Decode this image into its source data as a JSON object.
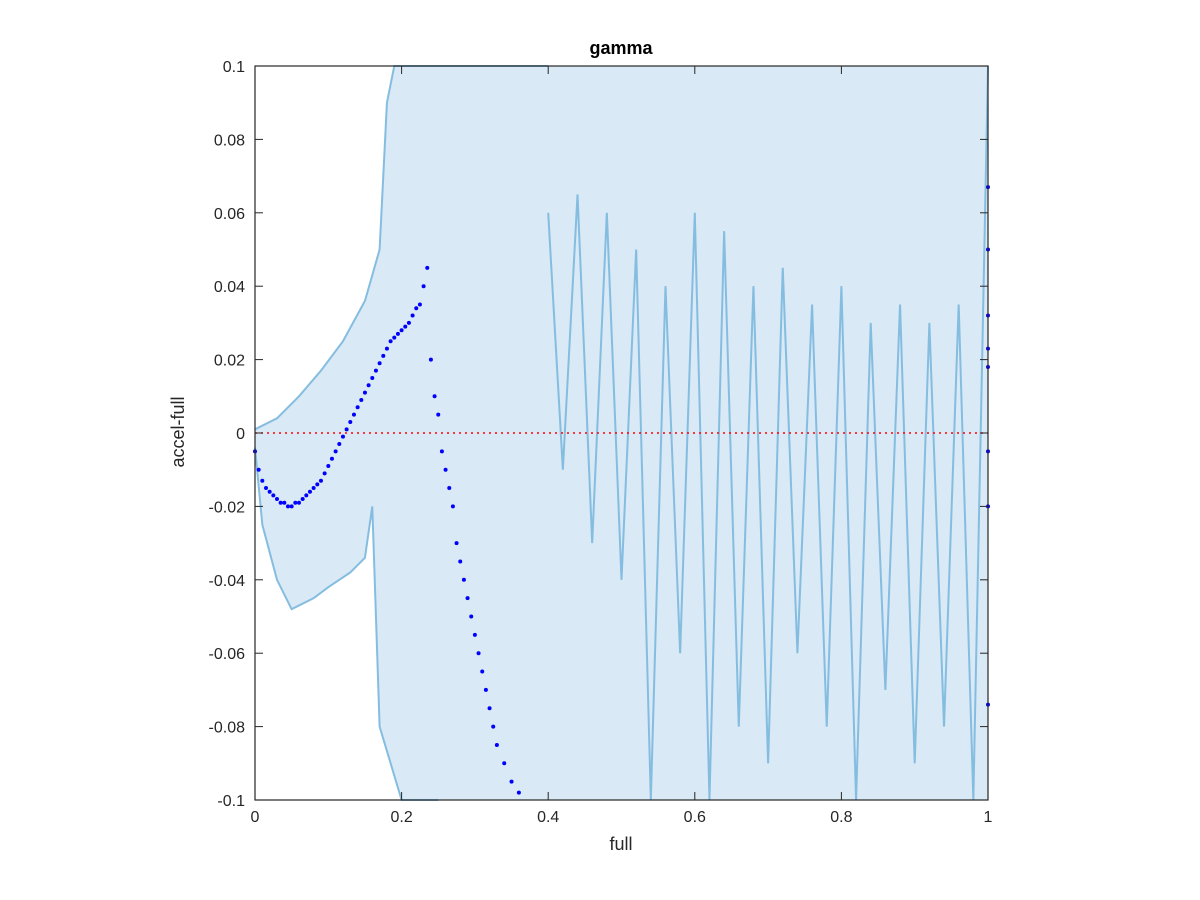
{
  "chart_data": {
    "type": "scatter",
    "title": "gamma",
    "xlabel": "full",
    "ylabel": "accel-full",
    "xlim": [
      0,
      1
    ],
    "ylim": [
      -0.1,
      0.1
    ],
    "xticks": [
      "0",
      "0.2",
      "0.4",
      "0.6",
      "0.8",
      "1"
    ],
    "yticks": [
      "-0.1",
      "-0.08",
      "-0.06",
      "-0.04",
      "-0.02",
      "0",
      "0.02",
      "0.04",
      "0.06",
      "0.08",
      "0.1"
    ],
    "reference_line_y": 0,
    "colors": {
      "band_fill": "#d9e9f5",
      "band_line": "#85bde0",
      "points": "#0000ff",
      "reference": "#ff0000",
      "axes": "#262626"
    },
    "band": {
      "upper": [
        [
          0,
          0.001
        ],
        [
          0.03,
          0.004
        ],
        [
          0.06,
          0.01
        ],
        [
          0.09,
          0.017
        ],
        [
          0.12,
          0.025
        ],
        [
          0.15,
          0.036
        ],
        [
          0.17,
          0.05
        ],
        [
          0.18,
          0.09
        ],
        [
          0.19,
          0.1
        ],
        [
          0.25,
          0.1
        ],
        [
          0.38,
          0.1
        ],
        [
          0.4,
          0.1
        ]
      ],
      "lower": [
        [
          0,
          -0.004
        ],
        [
          0.01,
          -0.025
        ],
        [
          0.03,
          -0.04
        ],
        [
          0.05,
          -0.048
        ],
        [
          0.08,
          -0.045
        ],
        [
          0.1,
          -0.042
        ],
        [
          0.13,
          -0.038
        ],
        [
          0.15,
          -0.034
        ],
        [
          0.16,
          -0.02
        ],
        [
          0.17,
          -0.08
        ],
        [
          0.2,
          -0.1
        ],
        [
          0.24,
          -0.1
        ],
        [
          0.25,
          -0.1
        ]
      ],
      "noise_lines": [
        {
          "x": [
            0.4,
            0.42,
            0.44,
            0.46,
            0.48,
            0.5,
            0.52,
            0.54,
            0.56,
            0.58,
            0.6,
            0.62,
            0.64,
            0.66,
            0.68,
            0.7,
            0.72,
            0.74,
            0.76,
            0.78,
            0.8,
            0.82,
            0.84,
            0.86,
            0.88,
            0.9,
            0.92,
            0.94,
            0.96,
            0.98,
            1.0
          ],
          "y": [
            0.06,
            -0.01,
            0.065,
            -0.03,
            0.06,
            -0.04,
            0.05,
            -0.1,
            0.04,
            -0.06,
            0.06,
            -0.1,
            0.055,
            -0.08,
            0.04,
            -0.09,
            0.045,
            -0.06,
            0.035,
            -0.08,
            0.04,
            -0.1,
            0.03,
            -0.07,
            0.035,
            -0.09,
            0.03,
            -0.08,
            0.035,
            -0.1,
            0.1
          ]
        }
      ]
    },
    "points": [
      [
        0.0,
        -0.005
      ],
      [
        0.005,
        -0.01
      ],
      [
        0.01,
        -0.013
      ],
      [
        0.015,
        -0.015
      ],
      [
        0.02,
        -0.016
      ],
      [
        0.025,
        -0.017
      ],
      [
        0.03,
        -0.018
      ],
      [
        0.035,
        -0.019
      ],
      [
        0.04,
        -0.019
      ],
      [
        0.045,
        -0.02
      ],
      [
        0.05,
        -0.02
      ],
      [
        0.055,
        -0.019
      ],
      [
        0.06,
        -0.019
      ],
      [
        0.065,
        -0.018
      ],
      [
        0.07,
        -0.017
      ],
      [
        0.075,
        -0.016
      ],
      [
        0.08,
        -0.015
      ],
      [
        0.085,
        -0.014
      ],
      [
        0.09,
        -0.013
      ],
      [
        0.095,
        -0.011
      ],
      [
        0.1,
        -0.009
      ],
      [
        0.105,
        -0.007
      ],
      [
        0.11,
        -0.005
      ],
      [
        0.115,
        -0.003
      ],
      [
        0.12,
        -0.001
      ],
      [
        0.125,
        0.001
      ],
      [
        0.13,
        0.003
      ],
      [
        0.135,
        0.005
      ],
      [
        0.14,
        0.007
      ],
      [
        0.145,
        0.009
      ],
      [
        0.15,
        0.011
      ],
      [
        0.155,
        0.013
      ],
      [
        0.16,
        0.015
      ],
      [
        0.165,
        0.017
      ],
      [
        0.17,
        0.019
      ],
      [
        0.175,
        0.021
      ],
      [
        0.18,
        0.023
      ],
      [
        0.185,
        0.025
      ],
      [
        0.19,
        0.026
      ],
      [
        0.195,
        0.027
      ],
      [
        0.2,
        0.028
      ],
      [
        0.205,
        0.029
      ],
      [
        0.21,
        0.03
      ],
      [
        0.215,
        0.032
      ],
      [
        0.22,
        0.034
      ],
      [
        0.225,
        0.035
      ],
      [
        0.23,
        0.04
      ],
      [
        0.235,
        0.045
      ],
      [
        0.24,
        0.02
      ],
      [
        0.245,
        0.01
      ],
      [
        0.25,
        0.005
      ],
      [
        0.255,
        -0.005
      ],
      [
        0.26,
        -0.01
      ],
      [
        0.265,
        -0.015
      ],
      [
        0.27,
        -0.02
      ],
      [
        0.275,
        -0.03
      ],
      [
        0.28,
        -0.035
      ],
      [
        0.285,
        -0.04
      ],
      [
        0.29,
        -0.045
      ],
      [
        0.295,
        -0.05
      ],
      [
        0.3,
        -0.055
      ],
      [
        0.305,
        -0.06
      ],
      [
        0.31,
        -0.065
      ],
      [
        0.315,
        -0.07
      ],
      [
        0.32,
        -0.075
      ],
      [
        0.325,
        -0.08
      ],
      [
        0.33,
        -0.085
      ],
      [
        0.34,
        -0.09
      ],
      [
        0.35,
        -0.095
      ],
      [
        0.36,
        -0.098
      ],
      [
        1.0,
        0.067
      ],
      [
        1.0,
        0.05
      ],
      [
        1.0,
        0.032
      ],
      [
        1.0,
        0.023
      ],
      [
        1.0,
        0.018
      ],
      [
        1.0,
        -0.005
      ],
      [
        1.0,
        -0.02
      ],
      [
        1.0,
        -0.074
      ]
    ]
  }
}
